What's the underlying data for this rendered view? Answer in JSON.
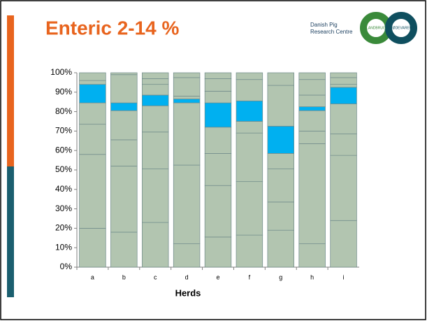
{
  "title": "Enteric 2-14 %",
  "logo": {
    "line1": "Danish Pig",
    "line2": "Research Centre",
    "ring1": "LANDBRUG",
    "ring2": "FØDEVARER"
  },
  "chart_data": {
    "type": "stacked_bar_100",
    "x_label": "Herds",
    "categories": [
      "a",
      "b",
      "c",
      "d",
      "e",
      "f",
      "g",
      "h",
      "i"
    ],
    "segments": [
      [
        20,
        38,
        15.5,
        11,
        9.5,
        2,
        4
      ],
      [
        18,
        34,
        13.5,
        15,
        4,
        14.5,
        1
      ],
      [
        23,
        27.5,
        19,
        13.5,
        5.5,
        5.5,
        3,
        3
      ],
      [
        12,
        40.5,
        32,
        2,
        1.5,
        9.5,
        2.5
      ],
      [
        15.5,
        26.5,
        16.5,
        13.5,
        12.5,
        6,
        6.5,
        3
      ],
      [
        16.5,
        27.5,
        25,
        6,
        10.5,
        11,
        3.5
      ],
      [
        19,
        14.5,
        17,
        8,
        14,
        21,
        6.5
      ],
      [
        12,
        51.5,
        6.5,
        10.5,
        2,
        6,
        8,
        3.5
      ],
      [
        24,
        33.5,
        11,
        15.5,
        8.5,
        1.5,
        3.5,
        2.5
      ]
    ],
    "highlight_index": [
      4,
      4,
      4,
      3,
      4,
      4,
      4,
      4,
      4
    ],
    "color": "#b2c5b0",
    "highlight_color": "#00b0f0",
    "ylim": [
      0,
      100
    ],
    "yticks": [
      {
        "value": 0,
        "label": "0%"
      },
      {
        "value": 10,
        "label": "10%"
      },
      {
        "value": 20,
        "label": "20%"
      },
      {
        "value": 30,
        "label": "30%"
      },
      {
        "value": 40,
        "label": "40%"
      },
      {
        "value": 50,
        "label": "50%"
      },
      {
        "value": 60,
        "label": "60%"
      },
      {
        "value": 70,
        "label": "70%"
      },
      {
        "value": 80,
        "label": "80%"
      },
      {
        "value": 90,
        "label": "90%"
      },
      {
        "value": 100,
        "label": "100%"
      }
    ]
  }
}
